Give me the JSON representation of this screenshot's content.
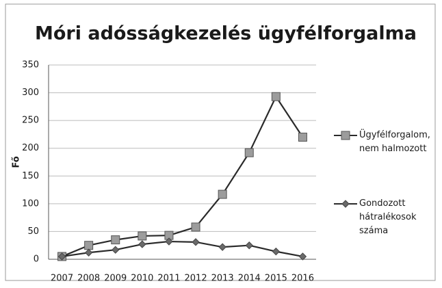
{
  "chart_data": {
    "type": "line",
    "title": "Móri adósságkezelés ügyfélforgalma",
    "y_label": "Fő",
    "categories": [
      "2007",
      "2008",
      "2009",
      "2010",
      "2011",
      "2012",
      "2013",
      "2014",
      "2015",
      "2016"
    ],
    "series": [
      {
        "name": "Ügyfélforgalom, nem halmozott",
        "color": "#2a2a2a",
        "marker": "square",
        "marker_color": "#9c9c9c",
        "values": [
          5,
          25,
          35,
          42,
          43,
          58,
          117,
          192,
          293,
          220
        ]
      },
      {
        "name": "Gondozott hátralékosok száma",
        "color": "#2a2a2a",
        "marker": "diamond",
        "marker_color": "#6a6a6a",
        "values": [
          5,
          12,
          17,
          27,
          32,
          31,
          22,
          25,
          14,
          5
        ]
      }
    ],
    "ylim": [
      0,
      350
    ],
    "yticks": [
      0,
      50,
      100,
      150,
      200,
      250,
      300,
      350
    ],
    "grid": true,
    "legend": "right"
  }
}
